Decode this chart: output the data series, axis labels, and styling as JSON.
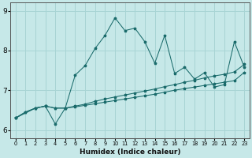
{
  "xlabel": "Humidex (Indice chaleur)",
  "ylabel": "",
  "background_color": "#c6e8e8",
  "line_color": "#1a6b6b",
  "grid_color": "#a8d4d4",
  "xlim": [
    -0.5,
    23.5
  ],
  "ylim": [
    5.8,
    9.2
  ],
  "xticks": [
    0,
    1,
    2,
    3,
    4,
    5,
    6,
    7,
    8,
    9,
    10,
    11,
    12,
    13,
    14,
    15,
    16,
    17,
    18,
    19,
    20,
    21,
    22,
    23
  ],
  "yticks": [
    6,
    7,
    8,
    9
  ],
  "series1_x": [
    0,
    1,
    2,
    3,
    4,
    5,
    6,
    7,
    8,
    9,
    10,
    11,
    12,
    13,
    14,
    15,
    16,
    17,
    18,
    19,
    20,
    21,
    22,
    23
  ],
  "series1_y": [
    6.3,
    6.45,
    6.55,
    6.6,
    6.55,
    6.55,
    6.58,
    6.62,
    6.66,
    6.7,
    6.74,
    6.78,
    6.82,
    6.86,
    6.9,
    6.95,
    7.0,
    7.04,
    7.08,
    7.12,
    7.16,
    7.2,
    7.24,
    7.45
  ],
  "series2_x": [
    0,
    1,
    2,
    3,
    4,
    5,
    6,
    7,
    8,
    9,
    10,
    11,
    12,
    13,
    14,
    15,
    16,
    17,
    18,
    19,
    20,
    21,
    22,
    23
  ],
  "series2_y": [
    6.3,
    6.45,
    6.55,
    6.6,
    6.55,
    6.55,
    6.6,
    6.65,
    6.72,
    6.78,
    6.83,
    6.88,
    6.93,
    6.98,
    7.03,
    7.09,
    7.14,
    7.2,
    7.25,
    7.31,
    7.36,
    7.4,
    7.46,
    7.65
  ],
  "series3_x": [
    0,
    2,
    3,
    4,
    5,
    6,
    7,
    8,
    9,
    10,
    11,
    12,
    13,
    14,
    15,
    16,
    17,
    18,
    19,
    20,
    21,
    22,
    23
  ],
  "series3_y": [
    6.3,
    6.55,
    6.6,
    6.15,
    6.55,
    7.38,
    7.62,
    8.05,
    8.38,
    8.82,
    8.5,
    8.56,
    8.22,
    7.68,
    8.38,
    7.42,
    7.58,
    7.28,
    7.44,
    7.08,
    7.14,
    8.22,
    7.58
  ]
}
